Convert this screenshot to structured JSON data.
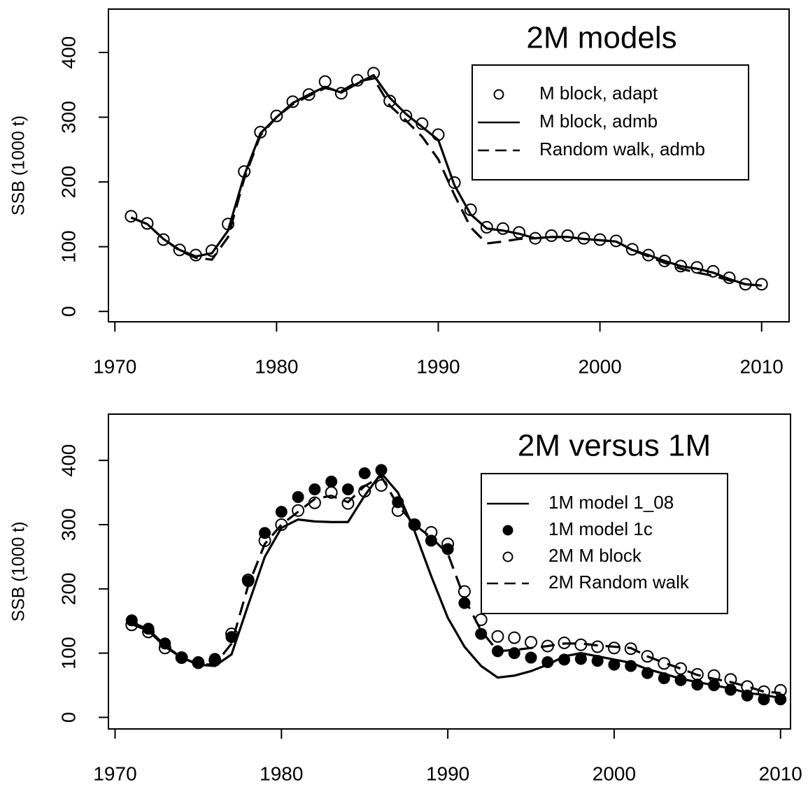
{
  "chart_data": [
    {
      "type": "line",
      "title": "2M models",
      "ylabel": "SSB (1000 t)",
      "x": [
        1971,
        1972,
        1973,
        1974,
        1975,
        1976,
        1977,
        1978,
        1979,
        1980,
        1981,
        1982,
        1983,
        1984,
        1985,
        1986,
        1987,
        1988,
        1989,
        1990,
        1991,
        1992,
        1993,
        1994,
        1995,
        1996,
        1997,
        1998,
        1999,
        2000,
        2001,
        2002,
        2003,
        2004,
        2005,
        2006,
        2007,
        2008,
        2009,
        2010
      ],
      "series": [
        {
          "name": "M block, adapt",
          "color": "#000000",
          "style": "points-open",
          "values": [
            147,
            136,
            111,
            95,
            87,
            94,
            135,
            216,
            277,
            302,
            324,
            335,
            355,
            337,
            357,
            368,
            325,
            302,
            290,
            273,
            199,
            157,
            130,
            128,
            122,
            113,
            117,
            117,
            113,
            111,
            109,
            96,
            87,
            78,
            70,
            68,
            62,
            52,
            42,
            42
          ]
        },
        {
          "name": "M block, admb",
          "color": "#000000",
          "style": "line-solid",
          "values": [
            145,
            135,
            112,
            95,
            85,
            90,
            125,
            210,
            275,
            300,
            322,
            335,
            347,
            338,
            352,
            365,
            330,
            305,
            285,
            265,
            195,
            150,
            128,
            125,
            120,
            113,
            115,
            115,
            112,
            110,
            108,
            95,
            87,
            78,
            70,
            66,
            60,
            50,
            42,
            40
          ]
        },
        {
          "name": "Random walk, admb",
          "color": "#000000",
          "style": "line-dashed",
          "values": [
            145,
            135,
            112,
            94,
            83,
            80,
            115,
            205,
            272,
            300,
            320,
            333,
            345,
            340,
            355,
            360,
            318,
            295,
            270,
            235,
            180,
            130,
            105,
            108,
            112,
            113,
            115,
            115,
            112,
            110,
            108,
            95,
            85,
            75,
            66,
            60,
            55,
            48,
            42,
            40
          ]
        }
      ],
      "xlim": [
        1969.6,
        2011.7
      ],
      "xticks": [
        1970,
        1980,
        1990,
        2000,
        2010
      ],
      "ylim": [
        -16,
        467
      ],
      "yticks": [
        0,
        100,
        200,
        300,
        400
      ],
      "legend": "topright"
    },
    {
      "type": "line",
      "title": "2M versus 1M",
      "ylabel": "SSB (1000 t)",
      "x": [
        1971,
        1972,
        1973,
        1974,
        1975,
        1976,
        1977,
        1978,
        1979,
        1980,
        1981,
        1982,
        1983,
        1984,
        1985,
        1986,
        1987,
        1988,
        1989,
        1990,
        1991,
        1992,
        1993,
        1994,
        1995,
        1996,
        1997,
        1998,
        1999,
        2000,
        2001,
        2002,
        2003,
        2004,
        2005,
        2006,
        2007,
        2008,
        2009,
        2010
      ],
      "series": [
        {
          "name": "1M model 1_08",
          "color": "#000000",
          "style": "line-solid",
          "values": [
            148,
            137,
            112,
            93,
            82,
            80,
            98,
            175,
            250,
            295,
            308,
            305,
            304,
            304,
            345,
            380,
            350,
            290,
            220,
            155,
            110,
            80,
            62,
            65,
            72,
            82,
            95,
            100,
            95,
            90,
            85,
            75,
            68,
            60,
            55,
            50,
            45,
            38,
            35,
            30
          ]
        },
        {
          "name": "1M model 1c",
          "color": "#000000",
          "style": "points-filled",
          "values": [
            151,
            138,
            115,
            93,
            86,
            91,
            125,
            212,
            287,
            320,
            343,
            355,
            367,
            355,
            380,
            385,
            335,
            300,
            275,
            262,
            178,
            130,
            103,
            100,
            93,
            86,
            90,
            91,
            88,
            82,
            80,
            69,
            61,
            58,
            51,
            50,
            43,
            34,
            28,
            28
          ]
        },
        {
          "name": "2M M block",
          "color": "#000000",
          "style": "points-open",
          "values": [
            144,
            133,
            108,
            93,
            85,
            89,
            130,
            214,
            275,
            300,
            322,
            334,
            350,
            333,
            352,
            361,
            322,
            300,
            288,
            270,
            196,
            152,
            126,
            124,
            117,
            111,
            116,
            113,
            110,
            108,
            107,
            95,
            84,
            76,
            67,
            65,
            59,
            48,
            40,
            42
          ]
        },
        {
          "name": "2M Random walk",
          "color": "#000000",
          "style": "line-dashed",
          "values": [
            145,
            135,
            110,
            93,
            83,
            82,
            115,
            205,
            270,
            300,
            320,
            340,
            345,
            335,
            360,
            375,
            330,
            300,
            280,
            255,
            185,
            135,
            103,
            105,
            108,
            111,
            115,
            115,
            112,
            110,
            108,
            95,
            85,
            76,
            66,
            60,
            55,
            48,
            40,
            38
          ]
        }
      ],
      "xlim": [
        1969.6,
        2010.6
      ],
      "xticks": [
        1970,
        1980,
        1990,
        2000,
        2010
      ],
      "ylim": [
        -18,
        472
      ],
      "yticks": [
        0,
        100,
        200,
        300,
        400
      ],
      "legend": "topright"
    }
  ]
}
